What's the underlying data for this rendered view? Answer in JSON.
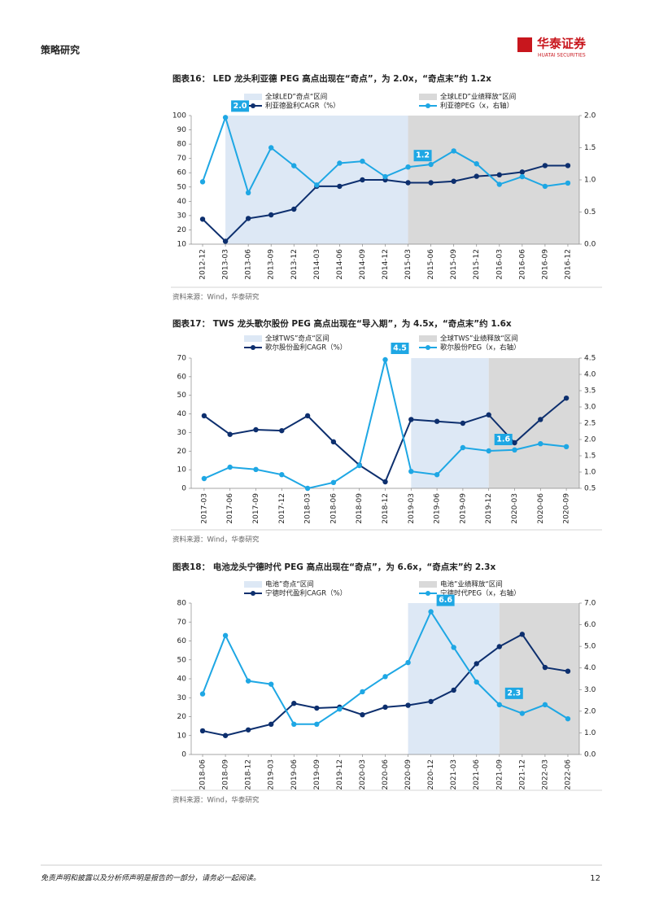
{
  "header": {
    "section": "策略研究",
    "logo_cn": "华泰证券",
    "logo_en": "HUATAI SECURITIES"
  },
  "footer": {
    "disclaimer": "免责声明和披露以及分析师声明是报告的一部分，请务必一起阅读。",
    "page": "12"
  },
  "chart_data": [
    {
      "type": "line",
      "title": "图表16： LED 龙头利亚德 PEG 高点出现在“奇点”，为 2.0x，“奇点末”约 1.2x",
      "source": "资料来源：Wind，华泰研究",
      "categories": [
        "2012-12",
        "2013-03",
        "2013-06",
        "2013-09",
        "2013-12",
        "2014-03",
        "2014-06",
        "2014-09",
        "2014-12",
        "2015-03",
        "2015-06",
        "2015-09",
        "2015-12",
        "2016-03",
        "2016-06",
        "2016-09",
        "2016-12"
      ],
      "ylim": [
        10,
        100
      ],
      "yticks": [
        10,
        20,
        30,
        40,
        50,
        60,
        70,
        80,
        90,
        100
      ],
      "y2lim": [
        0,
        2
      ],
      "y2ticks": [
        {
          "value": 0,
          "label": "0.0"
        },
        0.5,
        {
          "value": 1,
          "label": "1.0"
        },
        1.5,
        {
          "value": 2,
          "label": "2.0"
        }
      ],
      "bands": [
        {
          "name": "全球LED”奇点“区间",
          "from": "2013-03",
          "to": "2015-03",
          "color": "#dde8f5"
        },
        {
          "name": "全球LED”业绩释放“区间",
          "from": "2015-03",
          "to": "2016-12",
          "color": "#d9d9d9"
        }
      ],
      "series": [
        {
          "name": "利亚德盈利CAGR（%）",
          "color": "#0d2f6e",
          "values": [
            27.5,
            12,
            28,
            30.5,
            34.5,
            50.5,
            50.5,
            55,
            55,
            53,
            53,
            54,
            57.5,
            58.5,
            60.5,
            65,
            65
          ]
        },
        {
          "name": "利亚德PEG（x，右轴）",
          "color": "#1ea7e4",
          "axis": "y2",
          "values": [
            0.97,
            1.97,
            0.8,
            1.5,
            1.22,
            0.92,
            1.26,
            1.29,
            1.05,
            1.2,
            1.24,
            1.45,
            1.25,
            0.93,
            1.05,
            0.9,
            0.95
          ],
          "value_labels": [
            null,
            "2.0",
            null,
            null,
            null,
            null,
            null,
            null,
            null,
            "1.2",
            null,
            null,
            null,
            null,
            null,
            null,
            null
          ]
        }
      ]
    },
    {
      "type": "line",
      "title": "图表17： TWS 龙头歌尔股份 PEG 高点出现在“导入期”，为 4.5x，“奇点末”约 1.6x",
      "source": "资料来源：Wind，华泰研究",
      "categories": [
        "2017-03",
        "2017-06",
        "2017-09",
        "2017-12",
        "2018-03",
        "2018-06",
        "2018-09",
        "2018-12",
        "2019-03",
        "2019-06",
        "2019-09",
        "2019-12",
        "2020-03",
        "2020-06",
        "2020-09"
      ],
      "ylim": [
        0,
        70
      ],
      "yticks": [
        0,
        10,
        20,
        30,
        40,
        50,
        60,
        70
      ],
      "y2lim": [
        0.5,
        4.5
      ],
      "y2ticks": [
        0.5,
        {
          "value": 1,
          "label": "1.0"
        },
        1.5,
        {
          "value": 2,
          "label": "2.0"
        },
        2.5,
        {
          "value": 3,
          "label": "3.0"
        },
        3.5,
        {
          "value": 4,
          "label": "4.0"
        },
        4.5
      ],
      "bands": [
        {
          "name": "全球TWS”奇点“区间",
          "from": "2019-03",
          "to": "2019-12",
          "color": "#dde8f5"
        },
        {
          "name": "全球TWS”业绩释放“区间",
          "from": "2019-12",
          "to": "2020-09",
          "color": "#d9d9d9"
        }
      ],
      "series": [
        {
          "name": "歌尔股份盈利CAGR（%）",
          "color": "#0d2f6e",
          "values": [
            39,
            29,
            31.5,
            31,
            39,
            25,
            12.5,
            3.5,
            37,
            36,
            35,
            39.5,
            24.5,
            37,
            48.5
          ]
        },
        {
          "name": "歌尔股份PEG（x，右轴）",
          "color": "#1ea7e4",
          "axis": "y2",
          "values": [
            0.8,
            1.15,
            1.08,
            0.92,
            0.5,
            0.68,
            1.2,
            4.45,
            1.02,
            0.92,
            1.75,
            1.65,
            1.68,
            1.87,
            1.78
          ],
          "value_labels": [
            null,
            null,
            null,
            null,
            null,
            null,
            null,
            "4.5",
            null,
            null,
            null,
            "1.6",
            null,
            null,
            null
          ]
        }
      ]
    },
    {
      "type": "line",
      "title": "图表18： 电池龙头宁德时代 PEG 高点出现在“奇点”，为 6.6x，“奇点末”约 2.3x",
      "source": "资料来源：Wind，华泰研究",
      "categories": [
        "2018-06",
        "2018-09",
        "2018-12",
        "2019-03",
        "2019-06",
        "2019-09",
        "2019-12",
        "2020-03",
        "2020-06",
        "2020-09",
        "2020-12",
        "2021-03",
        "2021-06",
        "2021-09",
        "2021-12",
        "2022-03",
        "2022-06"
      ],
      "ylim": [
        0,
        80
      ],
      "yticks": [
        0,
        10,
        20,
        30,
        40,
        50,
        60,
        70,
        80
      ],
      "y2lim": [
        0,
        7
      ],
      "y2ticks": [
        {
          "value": 0,
          "label": "0.0"
        },
        {
          "value": 1,
          "label": "1.0"
        },
        {
          "value": 2,
          "label": "2.0"
        },
        {
          "value": 3,
          "label": "3.0"
        },
        {
          "value": 4,
          "label": "4.0"
        },
        {
          "value": 5,
          "label": "5.0"
        },
        {
          "value": 6,
          "label": "6.0"
        },
        {
          "value": 7,
          "label": "7.0"
        }
      ],
      "bands": [
        {
          "name": "电池”奇点“区间",
          "from": "2020-09",
          "to": "2021-09",
          "color": "#dde8f5"
        },
        {
          "name": "电池”业绩释放“区间",
          "from": "2021-09",
          "to": "2022-06",
          "color": "#d9d9d9"
        }
      ],
      "series": [
        {
          "name": "宁德时代盈利CAGR（%）",
          "color": "#0d2f6e",
          "values": [
            12.5,
            10,
            13,
            16,
            27,
            24.5,
            25,
            21,
            25,
            26,
            28,
            34,
            48,
            57,
            63.5,
            46,
            44
          ]
        },
        {
          "name": "宁德时代PEG（x，右轴）",
          "color": "#1ea7e4",
          "axis": "y2",
          "values": [
            2.8,
            5.5,
            3.4,
            3.25,
            1.4,
            1.4,
            2.1,
            2.9,
            3.6,
            4.25,
            6.6,
            4.95,
            3.35,
            2.3,
            1.9,
            2.3,
            1.65
          ],
          "value_labels": [
            null,
            null,
            null,
            null,
            null,
            null,
            null,
            null,
            null,
            null,
            "6.6",
            null,
            null,
            "2.3",
            null,
            null,
            null
          ]
        }
      ]
    }
  ]
}
